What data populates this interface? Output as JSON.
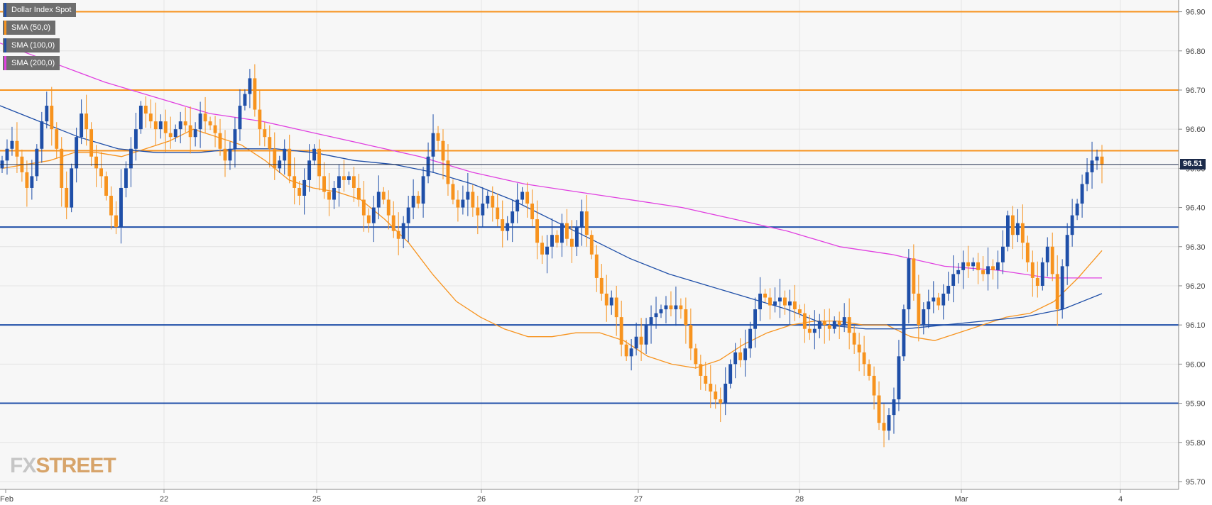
{
  "legend": [
    {
      "label": "Dollar Index Spot",
      "color": "#1f4fa8"
    },
    {
      "label": "SMA (50,0)",
      "color": "#f7931e"
    },
    {
      "label": "SMA (100,0)",
      "color": "#1f4fa8"
    },
    {
      "label": "SMA (200,0)",
      "color": "#e040e0"
    }
  ],
  "watermark": {
    "part1": "FX",
    "part2": "STREET"
  },
  "last_price_label": "96.51",
  "colors": {
    "up_candle": "#1f4fa8",
    "down_candle": "#f7931e",
    "resistance": "#f7931e",
    "support": "#1f4fa8",
    "sma50": "#f7931e",
    "sma100": "#1f4fa8",
    "sma200": "#e040e0",
    "price_tag": "#1b2a4a"
  },
  "chart_data": {
    "type": "candlestick",
    "title": "Dollar Index Spot",
    "y_axis_ticks": [
      "95.70",
      "95.80",
      "95.90",
      "96.00",
      "96.10",
      "96.20",
      "96.30",
      "96.40",
      "96.50",
      "96.60",
      "96.70",
      "96.80",
      "96.90"
    ],
    "x_axis_ticks": [
      "Feb",
      "22",
      "25",
      "26",
      "27",
      "28",
      "Mar",
      "4"
    ],
    "ylim": [
      95.68,
      96.93
    ],
    "last_price": 96.51,
    "horizontal_levels": [
      {
        "value": 96.9,
        "kind": "resistance"
      },
      {
        "value": 96.7,
        "kind": "resistance"
      },
      {
        "value": 96.545,
        "kind": "resistance"
      },
      {
        "value": 96.35,
        "kind": "support"
      },
      {
        "value": 96.1,
        "kind": "support"
      },
      {
        "value": 95.9,
        "kind": "support"
      }
    ],
    "close_series": [
      96.52,
      96.55,
      96.57,
      96.53,
      96.49,
      96.45,
      96.48,
      96.55,
      96.62,
      96.66,
      96.6,
      96.55,
      96.45,
      96.4,
      96.5,
      96.58,
      96.64,
      96.6,
      96.53,
      96.5,
      96.48,
      96.43,
      96.38,
      96.35,
      96.45,
      96.5,
      96.55,
      96.6,
      96.66,
      96.64,
      96.62,
      96.6,
      96.62,
      96.59,
      96.58,
      96.6,
      96.62,
      96.61,
      96.58,
      96.6,
      96.64,
      96.62,
      96.61,
      96.59,
      96.55,
      96.52,
      96.55,
      96.6,
      96.66,
      96.69,
      96.73,
      96.65,
      96.6,
      96.58,
      96.55,
      96.5,
      96.52,
      96.55,
      96.48,
      96.45,
      96.43,
      96.47,
      96.52,
      96.55,
      96.48,
      96.44,
      96.42,
      96.45,
      96.48,
      96.47,
      96.48,
      96.45,
      96.42,
      96.38,
      96.36,
      96.4,
      96.44,
      96.42,
      96.38,
      96.34,
      96.32,
      96.36,
      96.4,
      96.43,
      96.41,
      96.48,
      96.53,
      96.59,
      96.57,
      96.52,
      96.46,
      96.42,
      96.4,
      96.42,
      96.44,
      96.4,
      96.38,
      96.41,
      96.43,
      96.4,
      96.37,
      96.34,
      96.36,
      96.39,
      96.42,
      96.44,
      96.41,
      96.37,
      96.31,
      96.28,
      96.3,
      96.33,
      96.31,
      96.36,
      96.32,
      96.3,
      96.35,
      96.39,
      96.33,
      96.28,
      96.22,
      96.18,
      96.15,
      96.17,
      96.12,
      96.05,
      96.02,
      96.04,
      96.07,
      96.05,
      96.1,
      96.12,
      96.13,
      96.14,
      96.15,
      96.14,
      96.15,
      96.14,
      96.1,
      96.04,
      96.0,
      95.97,
      95.95,
      95.93,
      95.91,
      95.9,
      95.95,
      96.0,
      96.03,
      96.01,
      96.04,
      96.09,
      96.14,
      96.18,
      96.17,
      96.15,
      96.16,
      96.17,
      96.15,
      96.16,
      96.14,
      96.13,
      96.09,
      96.08,
      96.09,
      96.11,
      96.1,
      96.09,
      96.11,
      96.1,
      96.12,
      96.08,
      96.05,
      96.03,
      96.0,
      95.97,
      95.92,
      95.85,
      95.83,
      95.87,
      95.91,
      96.02,
      96.14,
      96.27,
      96.18,
      96.1,
      96.14,
      96.16,
      96.17,
      96.15,
      96.18,
      96.2,
      96.23,
      96.24,
      96.26,
      96.25,
      96.26,
      96.24,
      96.23,
      96.25,
      96.24,
      96.26,
      96.3,
      96.38,
      96.33,
      96.36,
      96.31,
      96.26,
      96.22,
      96.2,
      96.26,
      96.3,
      96.23,
      96.14,
      96.25,
      96.33,
      96.38,
      96.41,
      96.46,
      96.49,
      96.52,
      96.53,
      96.51
    ],
    "sma50_series": [
      96.5,
      96.51,
      96.52,
      96.54,
      96.54,
      96.53,
      96.55,
      96.57,
      96.6,
      96.58,
      96.56,
      96.52,
      96.47,
      96.45,
      96.44,
      96.42,
      96.37,
      96.31,
      96.23,
      96.16,
      96.12,
      96.09,
      96.07,
      96.07,
      96.08,
      96.08,
      96.06,
      96.02,
      96.0,
      95.99,
      96.01,
      96.05,
      96.08,
      96.1,
      96.11,
      96.11,
      96.1,
      96.1,
      96.07,
      96.06,
      96.08,
      96.1,
      96.12,
      96.13,
      96.16,
      96.22,
      96.29
    ],
    "sma100_series": [
      96.66,
      96.62,
      96.58,
      96.55,
      96.54,
      96.54,
      96.55,
      96.55,
      96.54,
      96.52,
      96.51,
      96.49,
      96.46,
      96.42,
      96.37,
      96.32,
      96.27,
      96.23,
      96.2,
      96.17,
      96.14,
      96.1,
      96.09,
      96.09,
      96.1,
      96.11,
      96.12,
      96.14,
      96.18
    ],
    "sma200_series": [
      96.82,
      96.77,
      96.72,
      96.68,
      96.64,
      96.62,
      96.59,
      96.56,
      96.53,
      96.49,
      96.46,
      96.44,
      96.42,
      96.4,
      96.37,
      96.34,
      96.3,
      96.28,
      96.25,
      96.24,
      96.22,
      96.22
    ]
  }
}
